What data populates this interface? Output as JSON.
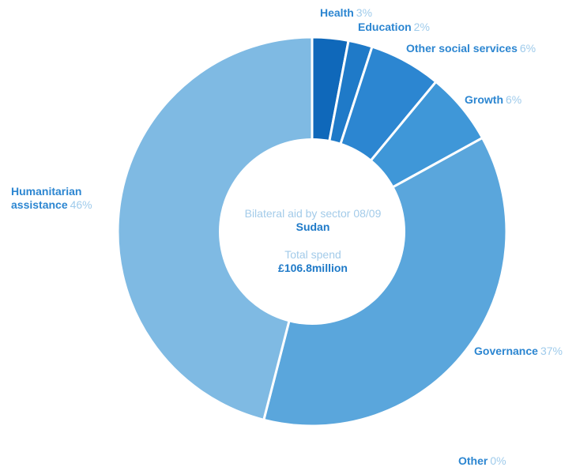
{
  "chart_data": {
    "type": "pie",
    "title": "Bilateral aid by sector 08/09",
    "subtitle": "Sudan",
    "total_label": "Total spend",
    "total_value": "£106.8million",
    "unit": "%",
    "slices": [
      {
        "name": "Health",
        "label": "3%",
        "value": 3,
        "color": "#0f68ba"
      },
      {
        "name": "Education",
        "label": "2%",
        "value": 2,
        "color": "#1f7ac8"
      },
      {
        "name": "Other social services",
        "label": "6%",
        "value": 6,
        "color": "#2c86d1"
      },
      {
        "name": "Growth",
        "label": "6%",
        "value": 6,
        "color": "#3f97d8"
      },
      {
        "name": "Governance",
        "label": "37%",
        "value": 37,
        "color": "#5aa6dc"
      },
      {
        "name": "Humanitarian assistance",
        "label": "46%",
        "value": 46,
        "color": "#7fbae3"
      },
      {
        "name": "Other",
        "label": "0%",
        "value": 0,
        "color": "#a7cfee"
      }
    ]
  },
  "colors": {
    "label_name": "#2c86d1",
    "label_pct": "#9fcbeb",
    "center_text": "#a3cbe9",
    "center_bold": "#1f7ac8"
  }
}
